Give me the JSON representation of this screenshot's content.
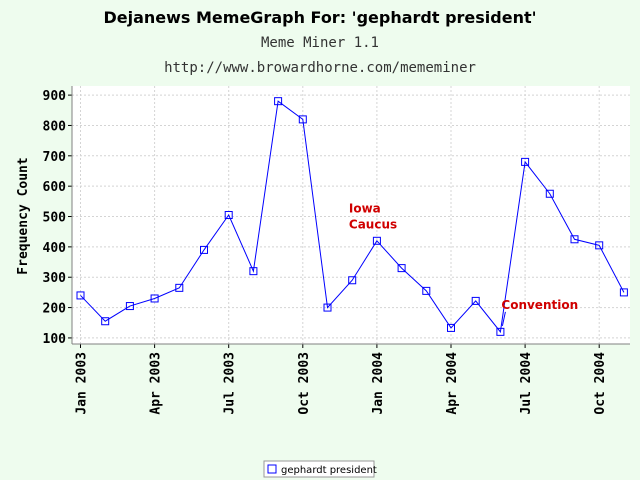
{
  "chart_data": {
    "type": "line",
    "title": "Dejanews MemeGraph For: 'gephardt president'",
    "subtitle": "Meme Miner 1.1",
    "subtitle2": "http://www.browardhorne.com/mememiner",
    "xlabel": "",
    "ylabel": "Frequency Count",
    "ylim": [
      80,
      930
    ],
    "yticks": [
      100,
      200,
      300,
      400,
      500,
      600,
      700,
      800,
      900
    ],
    "xticks": [
      "Jan 2003",
      "Apr 2003",
      "Jul 2003",
      "Oct 2003",
      "Jan 2004",
      "Apr 2004",
      "Jul 2004",
      "Oct 2004"
    ],
    "grid": true,
    "legend_position": "bottom-center",
    "series": [
      {
        "name": "gephardt president",
        "color": "#0000ff",
        "marker": "hollow-square",
        "x": [
          "Jan 2003",
          "Feb 2003",
          "Mar 2003",
          "Apr 2003",
          "May 2003",
          "Jun 2003",
          "Jul 2003",
          "Aug 2003",
          "Sep 2003",
          "Oct 2003",
          "Nov 2003",
          "Dec 2003",
          "Jan 2004",
          "Feb 2004",
          "Mar 2004",
          "Apr 2004",
          "May 2004",
          "Jun 2004",
          "Jul 2004",
          "Aug 2004",
          "Sep 2004",
          "Oct 2004",
          "Nov 2004"
        ],
        "values": [
          240,
          155,
          205,
          230,
          265,
          390,
          505,
          320,
          880,
          820,
          200,
          290,
          420,
          330,
          255,
          133,
          222,
          120,
          680,
          575,
          425,
          405,
          250
        ]
      }
    ],
    "annotations": [
      {
        "lines": [
          "Iowa",
          "Caucus"
        ],
        "at": "Jan 2004"
      },
      {
        "text": "Convention",
        "at": "Jun 2004"
      }
    ]
  }
}
